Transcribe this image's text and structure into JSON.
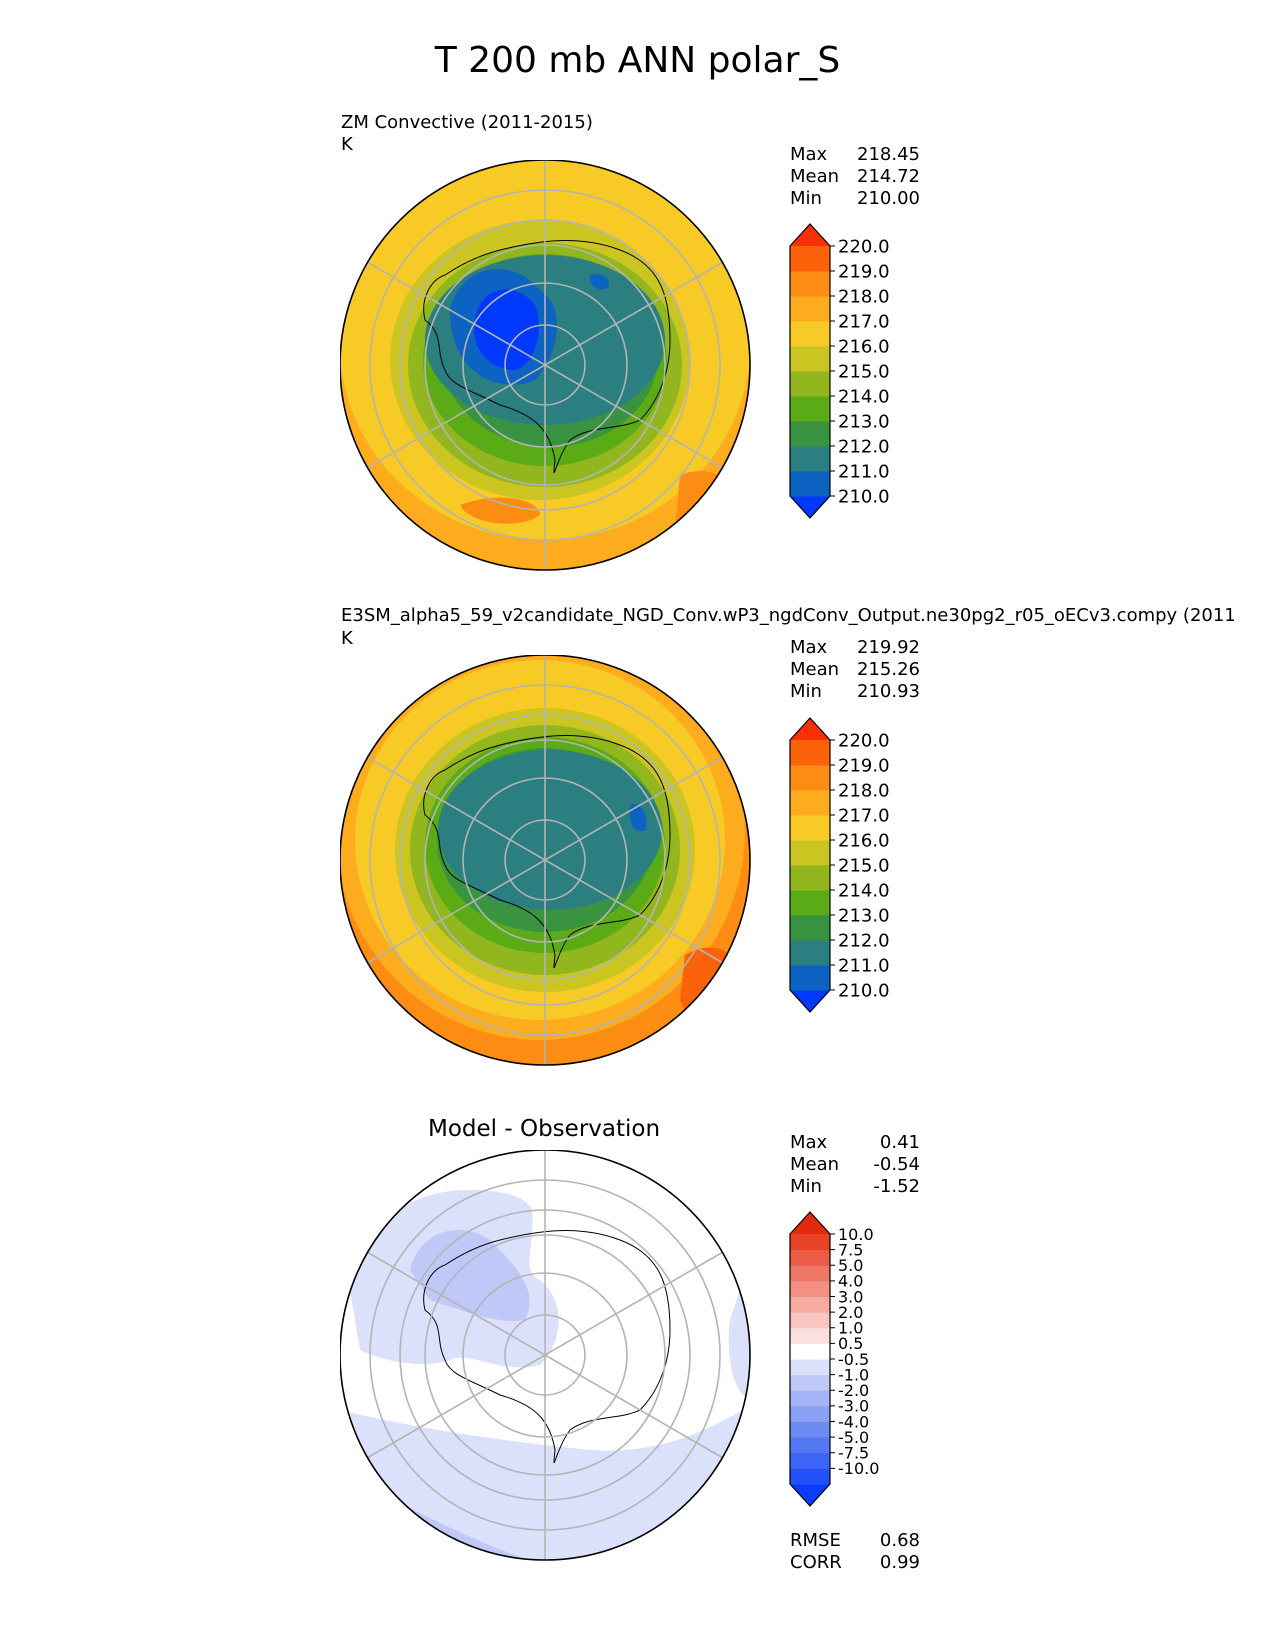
{
  "figure_title": "T 200 mb ANN polar_S",
  "colors": {
    "test_levels": [
      "#0039fc",
      "#0d63c2",
      "#2b7f80",
      "#3a9340",
      "#5aab16",
      "#92b61e",
      "#cbc522",
      "#f7ca25",
      "#fcac1d",
      "#fd8d12",
      "#fb620a",
      "#fa2f05"
    ],
    "diff_levels": [
      "#0a3dfa",
      "#2450f8",
      "#3c64f6",
      "#5477f4",
      "#6d8af2",
      "#8b9ff3",
      "#a5b4f6",
      "#c0c8f8",
      "#dbe1fa",
      "#ffffff",
      "#fbe0df",
      "#f9c5c1",
      "#f6aba2",
      "#f29183",
      "#ee7664",
      "#ea5c45",
      "#e64226",
      "#e22a0c"
    ]
  },
  "panels": [
    {
      "id": "test",
      "title": "ZM Convective (2011-2015)",
      "units": "K",
      "stats": [
        {
          "label": "Max",
          "value": "218.45"
        },
        {
          "label": "Mean",
          "value": "214.72"
        },
        {
          "label": "Min",
          "value": "210.00"
        }
      ],
      "colorbar_ticks": [
        "220.0",
        "219.0",
        "218.0",
        "217.0",
        "216.0",
        "215.0",
        "214.0",
        "213.0",
        "212.0",
        "211.0",
        "210.0"
      ]
    },
    {
      "id": "ref",
      "title": "E3SM_alpha5_59_v2candidate_NGD_Conv.wP3_ngdConv_Output.ne30pg2_r05_oECv3.compy (2011",
      "units": "K",
      "stats": [
        {
          "label": "Max",
          "value": "219.92"
        },
        {
          "label": "Mean",
          "value": "215.26"
        },
        {
          "label": "Min",
          "value": "210.93"
        }
      ],
      "colorbar_ticks": [
        "220.0",
        "219.0",
        "218.0",
        "217.0",
        "216.0",
        "215.0",
        "214.0",
        "213.0",
        "212.0",
        "211.0",
        "210.0"
      ]
    },
    {
      "id": "diff",
      "title": "Model - Observation",
      "stats": [
        {
          "label": "Max",
          "value": "0.41"
        },
        {
          "label": "Mean",
          "value": "-0.54"
        },
        {
          "label": "Min",
          "value": "-1.52"
        }
      ],
      "colorbar_ticks": [
        "10.0",
        "7.5",
        "5.0",
        "4.0",
        "3.0",
        "2.0",
        "1.0",
        "0.5",
        "-0.5",
        "-1.0",
        "-2.0",
        "-3.0",
        "-4.0",
        "-5.0",
        "-7.5",
        "-10.0"
      ],
      "metrics": [
        {
          "label": "RMSE",
          "value": "0.68"
        },
        {
          "label": "CORR",
          "value": "0.99"
        }
      ]
    }
  ],
  "chart_data": {
    "type": "heatmap",
    "title": "T 200 mb ANN polar_S",
    "projection": "south polar stereographic",
    "variable": "Temperature at 200 mb",
    "units": "K",
    "series": [
      {
        "name": "ZM Convective (2011-2015)",
        "max": 218.45,
        "mean": 214.72,
        "min": 210.0,
        "contour_levels": [
          210,
          211,
          212,
          213,
          214,
          215,
          216,
          217,
          218,
          219,
          220
        ]
      },
      {
        "name": "E3SM_alpha5_59_v2candidate_NGD_Conv.wP3_ngdConv_Output.ne30pg2_r05_oECv3.compy (2011",
        "max": 219.92,
        "mean": 215.26,
        "min": 210.93,
        "contour_levels": [
          210,
          211,
          212,
          213,
          214,
          215,
          216,
          217,
          218,
          219,
          220
        ]
      },
      {
        "name": "Model - Observation",
        "max": 0.41,
        "mean": -0.54,
        "min": -1.52,
        "contour_levels": [
          -10,
          -7.5,
          -5,
          -4,
          -3,
          -2,
          -1,
          -0.5,
          0.5,
          1,
          2,
          3,
          4,
          5,
          7.5,
          10
        ],
        "rmse": 0.68,
        "corr": 0.99
      }
    ]
  }
}
